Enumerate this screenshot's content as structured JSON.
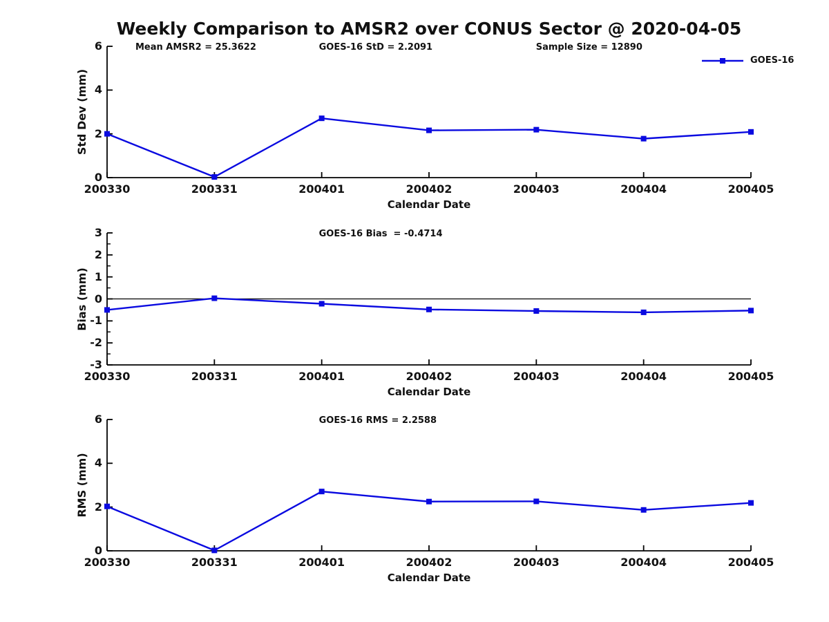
{
  "title": "Weekly Comparison to AMSR2 over CONUS Sector @ 2020-04-05",
  "legend": {
    "label": "GOES-16"
  },
  "colors": {
    "series_blue": "#0a0ae0",
    "axis_black": "#000000",
    "background": "#ffffff"
  },
  "chart_data": [
    {
      "id": "std-dev",
      "type": "line",
      "annotations": [
        "Mean AMSR2 = 25.3622",
        "GOES-16 StD = 2.2091",
        "Sample Size = 12890"
      ],
      "ylabel": "Std Dev (mm)",
      "xlabel": "Calendar Date",
      "categories": [
        "200330",
        "200331",
        "200401",
        "200402",
        "200403",
        "200404",
        "200405"
      ],
      "series": [
        {
          "name": "GOES-16",
          "values": [
            2.0,
            0.03,
            2.71,
            2.16,
            2.19,
            1.78,
            2.09
          ]
        }
      ],
      "ylim": [
        0,
        6
      ],
      "yticks": [
        0,
        2,
        4,
        6
      ],
      "grid": false,
      "legend_position": "top-right"
    },
    {
      "id": "bias",
      "type": "line",
      "annotations": [
        "GOES-16 Bias  = -0.4714"
      ],
      "ylabel": "Bias (mm)",
      "xlabel": "Calendar Date",
      "categories": [
        "200330",
        "200331",
        "200401",
        "200402",
        "200403",
        "200404",
        "200405"
      ],
      "series": [
        {
          "name": "GOES-16",
          "values": [
            -0.5,
            0.03,
            -0.22,
            -0.48,
            -0.55,
            -0.61,
            -0.53
          ]
        }
      ],
      "ylim": [
        -3,
        3
      ],
      "yticks": [
        -3,
        -2,
        -1,
        0,
        1,
        2,
        3
      ],
      "yticks_minor": [
        -2.5,
        -1.5,
        -0.5,
        0.5,
        1.5,
        2.5
      ],
      "zero_line": true,
      "grid": false
    },
    {
      "id": "rms",
      "type": "line",
      "annotations": [
        "GOES-16 RMS = 2.2588"
      ],
      "ylabel": "RMS (mm)",
      "xlabel": "Calendar Date",
      "categories": [
        "200330",
        "200331",
        "200401",
        "200402",
        "200403",
        "200404",
        "200405"
      ],
      "series": [
        {
          "name": "GOES-16",
          "values": [
            2.03,
            0.02,
            2.71,
            2.25,
            2.26,
            1.87,
            2.19
          ]
        }
      ],
      "ylim": [
        0,
        6
      ],
      "yticks": [
        0,
        2,
        4,
        6
      ],
      "grid": false
    }
  ]
}
